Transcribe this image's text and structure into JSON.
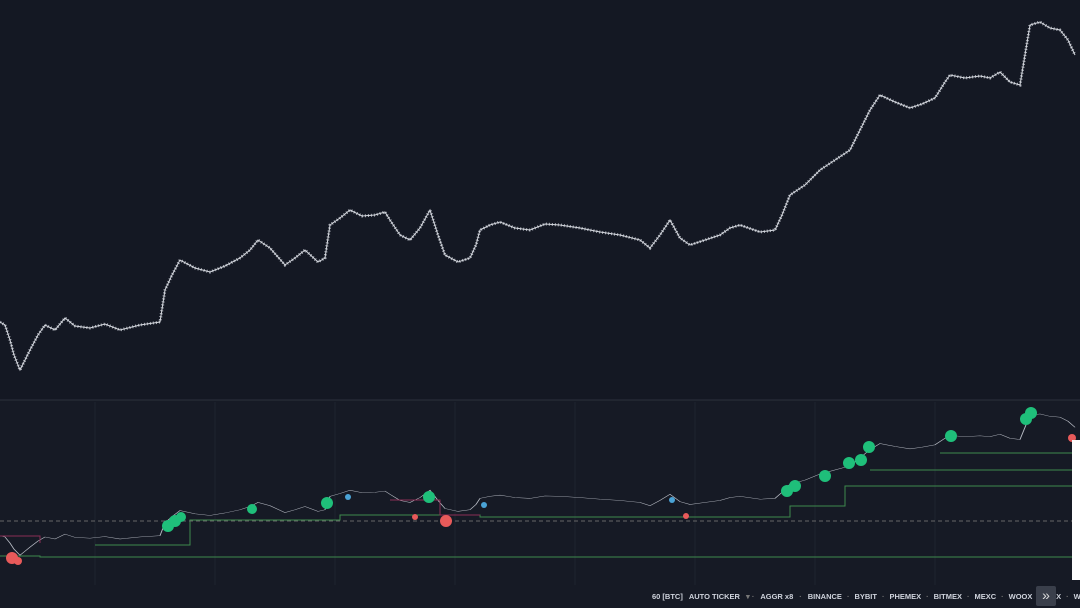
{
  "toolbar": {
    "ticker": "60 [BTC]",
    "ticker_mode": "AUTO TICKER",
    "aggr": "AGGR x8",
    "exchanges": [
      "BINANCE",
      "BYBIT",
      "PHEMEX",
      "BITMEX",
      "MEXC",
      "WOOX",
      "OKX",
      "WHITEB"
    ]
  }
}
